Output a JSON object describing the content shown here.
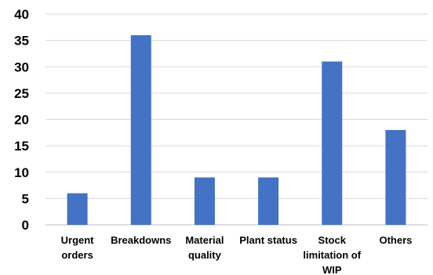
{
  "chart_data": {
    "type": "bar",
    "title": "",
    "xlabel": "",
    "ylabel": "",
    "categories": [
      [
        "Urgent",
        "orders"
      ],
      [
        "Breakdowns"
      ],
      [
        "Material",
        "quality"
      ],
      [
        "Plant status"
      ],
      [
        "Stock",
        "limitation of",
        "WIP"
      ],
      [
        "Others"
      ]
    ],
    "values": [
      6,
      36,
      9,
      9,
      31,
      18
    ],
    "ylim": [
      0,
      40
    ],
    "yticks": [
      "0",
      "5",
      "10",
      "15",
      "20",
      "25",
      "30",
      "35",
      "40"
    ],
    "grid": true,
    "bar_color": "#4472c4"
  }
}
